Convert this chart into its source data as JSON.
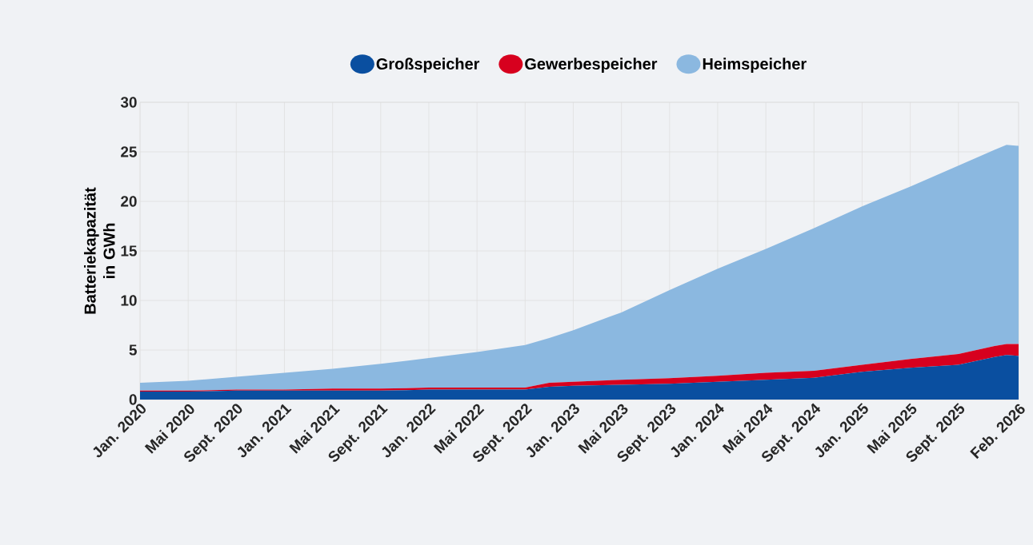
{
  "chart_data": {
    "type": "area",
    "stacked": true,
    "ylabel": "Batteriekapazität in GWh",
    "x": [
      "2020-01",
      "2020-05",
      "2020-09",
      "2021-01",
      "2021-05",
      "2021-09",
      "2022-01",
      "2022-05",
      "2022-09",
      "2022-11",
      "2023-01",
      "2023-05",
      "2023-09",
      "2024-01",
      "2024-05",
      "2024-09",
      "2025-01",
      "2025-05",
      "2025-09",
      "2025-12",
      "2026-01",
      "2026-02"
    ],
    "series": [
      {
        "name": "Großspeicher",
        "color": "#0a4fa0",
        "values": [
          0.8,
          0.8,
          0.9,
          0.9,
          0.9,
          0.9,
          1.0,
          1.0,
          1.0,
          1.3,
          1.4,
          1.5,
          1.6,
          1.8,
          2.0,
          2.2,
          2.8,
          3.2,
          3.5,
          4.3,
          4.5,
          4.4
        ]
      },
      {
        "name": "Gewerbespeicher",
        "color": "#d7001e",
        "values": [
          0.1,
          0.1,
          0.1,
          0.1,
          0.2,
          0.2,
          0.2,
          0.2,
          0.2,
          0.4,
          0.4,
          0.5,
          0.55,
          0.6,
          0.7,
          0.7,
          0.7,
          0.9,
          1.1,
          1.1,
          1.1,
          1.2
        ]
      },
      {
        "name": "Heimspeicher",
        "color": "#8bb8e0",
        "values": [
          0.8,
          1.0,
          1.3,
          1.7,
          2.0,
          2.5,
          3.0,
          3.6,
          4.3,
          4.5,
          5.2,
          6.8,
          8.9,
          10.8,
          12.5,
          14.4,
          16.0,
          17.4,
          19.0,
          19.8,
          20.1,
          20.0
        ]
      }
    ],
    "xlim": [
      "2020-01",
      "2026-02"
    ],
    "xticks": [
      {
        "value": "2020-01",
        "label": "Jan. 2020"
      },
      {
        "value": "2020-05",
        "label": "Mai 2020"
      },
      {
        "value": "2020-09",
        "label": "Sept. 2020"
      },
      {
        "value": "2021-01",
        "label": "Jan. 2021"
      },
      {
        "value": "2021-05",
        "label": "Mai 2021"
      },
      {
        "value": "2021-09",
        "label": "Sept. 2021"
      },
      {
        "value": "2022-01",
        "label": "Jan. 2022"
      },
      {
        "value": "2022-05",
        "label": "Mai 2022"
      },
      {
        "value": "2022-09",
        "label": "Sept. 2022"
      },
      {
        "value": "2023-01",
        "label": "Jan. 2023"
      },
      {
        "value": "2023-05",
        "label": "Mai 2023"
      },
      {
        "value": "2023-09",
        "label": "Sept. 2023"
      },
      {
        "value": "2024-01",
        "label": "Jan. 2024"
      },
      {
        "value": "2024-05",
        "label": "Mai 2024"
      },
      {
        "value": "2024-09",
        "label": "Sept. 2024"
      },
      {
        "value": "2025-01",
        "label": "Jan. 2025"
      },
      {
        "value": "2025-05",
        "label": "Mai 2025"
      },
      {
        "value": "2025-09",
        "label": "Sept. 2025"
      },
      {
        "value": "2026-02",
        "label": "Feb. 2026"
      }
    ],
    "ylim": [
      0,
      30
    ],
    "yticks": [
      0,
      5,
      10,
      15,
      20,
      25,
      30
    ],
    "grid": true,
    "legend": "top"
  }
}
